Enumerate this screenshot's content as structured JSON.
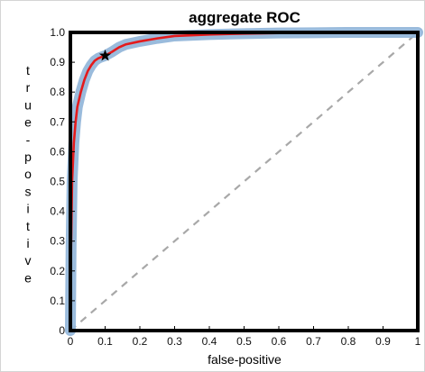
{
  "chart_data": {
    "type": "line",
    "title": "aggregate ROC",
    "xlabel": "false-positive",
    "ylabel": "true-positive",
    "xlim": [
      0,
      1
    ],
    "ylim": [
      0,
      1
    ],
    "x_ticks": [
      {
        "value": 0,
        "label": "0"
      },
      {
        "value": 0.1,
        "label": "0.1"
      },
      {
        "value": 0.2,
        "label": "0.2"
      },
      {
        "value": 0.3,
        "label": "0.3"
      },
      {
        "value": 0.4,
        "label": "0.4"
      },
      {
        "value": 0.5,
        "label": "0.5"
      },
      {
        "value": 0.6,
        "label": "0.6"
      },
      {
        "value": 0.7,
        "label": "0.7"
      },
      {
        "value": 0.8,
        "label": "0.8"
      },
      {
        "value": 0.9,
        "label": "0.9"
      },
      {
        "value": 1,
        "label": "1"
      }
    ],
    "y_ticks": [
      {
        "value": 0,
        "label": "0"
      },
      {
        "value": 0.1,
        "label": "0.1"
      },
      {
        "value": 0.2,
        "label": "0.2"
      },
      {
        "value": 0.3,
        "label": "0.3"
      },
      {
        "value": 0.4,
        "label": "0.4"
      },
      {
        "value": 0.5,
        "label": "0.5"
      },
      {
        "value": 0.6,
        "label": "0.6"
      },
      {
        "value": 0.7,
        "label": "0.7"
      },
      {
        "value": 0.8,
        "label": "0.8"
      },
      {
        "value": 0.9,
        "label": "0.9"
      },
      {
        "value": 1,
        "label": "1.0"
      }
    ],
    "grid": false,
    "series": [
      {
        "style": "red solid line with light-blue variability band",
        "color": "#e41a1c",
        "band_color": "#8fb4d8",
        "x": [
          0,
          0.002,
          0.005,
          0.01,
          0.015,
          0.02,
          0.03,
          0.04,
          0.05,
          0.06,
          0.07,
          0.08,
          0.09,
          0.1,
          0.12,
          0.14,
          0.16,
          0.2,
          0.25,
          0.3,
          0.4,
          0.5,
          0.6,
          0.7,
          0.8,
          0.9,
          1.0
        ],
        "y": [
          0,
          0.28,
          0.5,
          0.63,
          0.7,
          0.75,
          0.8,
          0.84,
          0.87,
          0.89,
          0.905,
          0.913,
          0.918,
          0.922,
          0.935,
          0.95,
          0.96,
          0.97,
          0.98,
          0.988,
          0.993,
          0.996,
          0.998,
          0.999,
          1.0,
          1.0,
          1.0
        ],
        "band_half_width": 0.03
      },
      {
        "style": "gray dashed diagonal reference",
        "color": "#a8a8a8",
        "x": [
          0,
          1
        ],
        "y": [
          0,
          1
        ]
      }
    ],
    "marker": {
      "shape": "star",
      "x": 0.1,
      "y": 0.922,
      "color": "#000000"
    }
  }
}
